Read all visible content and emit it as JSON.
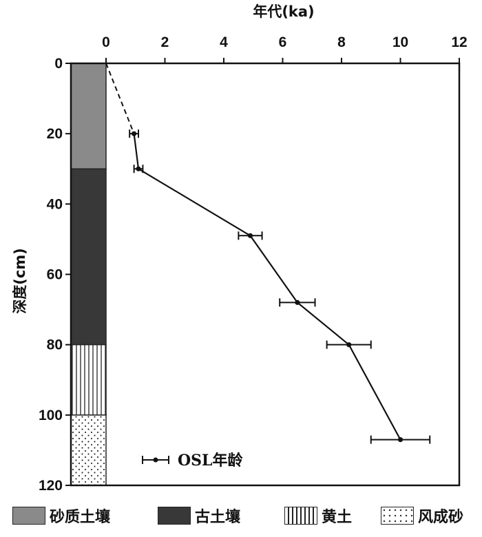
{
  "chart_data": {
    "type": "scatter",
    "title": "",
    "xlabel": "年代(ka)",
    "ylabel": "深度(cm)",
    "xlim": [
      0,
      12
    ],
    "ylim": [
      0,
      120
    ],
    "y_inverted": true,
    "x_axis_position": "top",
    "x_ticks": [
      "0",
      "2",
      "4",
      "6",
      "8",
      "10",
      "12"
    ],
    "y_ticks": [
      "0",
      "20",
      "40",
      "60",
      "80",
      "100",
      "120"
    ],
    "series": [
      {
        "name": "OSL年龄",
        "color": "#111111",
        "points": [
          {
            "age": 0.95,
            "depth": 20,
            "err": 0.15
          },
          {
            "age": 1.1,
            "depth": 30,
            "err": 0.15
          },
          {
            "age": 4.9,
            "depth": 49,
            "err": 0.4
          },
          {
            "age": 6.5,
            "depth": 68,
            "err": 0.6
          },
          {
            "age": 8.25,
            "depth": 80,
            "err": 0.75
          },
          {
            "age": 10.0,
            "depth": 107,
            "err": 1.0
          }
        ],
        "extrapolation": {
          "style": "dashed",
          "from": {
            "age": 0,
            "depth": 0
          },
          "to": {
            "age": 0.95,
            "depth": 20
          }
        }
      }
    ],
    "stratigraphy": [
      {
        "label": "砂质土壤",
        "top": 0,
        "bottom": 30,
        "pattern": "solid-gray",
        "color": "#8a8a8a"
      },
      {
        "label": "古土壤",
        "top": 30,
        "bottom": 80,
        "pattern": "solid-dark",
        "color": "#383838"
      },
      {
        "label": "黄土",
        "top": 80,
        "bottom": 100,
        "pattern": "vertical-lines",
        "color": "#ffffff"
      },
      {
        "label": "风成砂",
        "top": 100,
        "bottom": 120,
        "pattern": "dots",
        "color": "#ffffff"
      }
    ],
    "legend_placement": "bottom-left inside plot"
  }
}
